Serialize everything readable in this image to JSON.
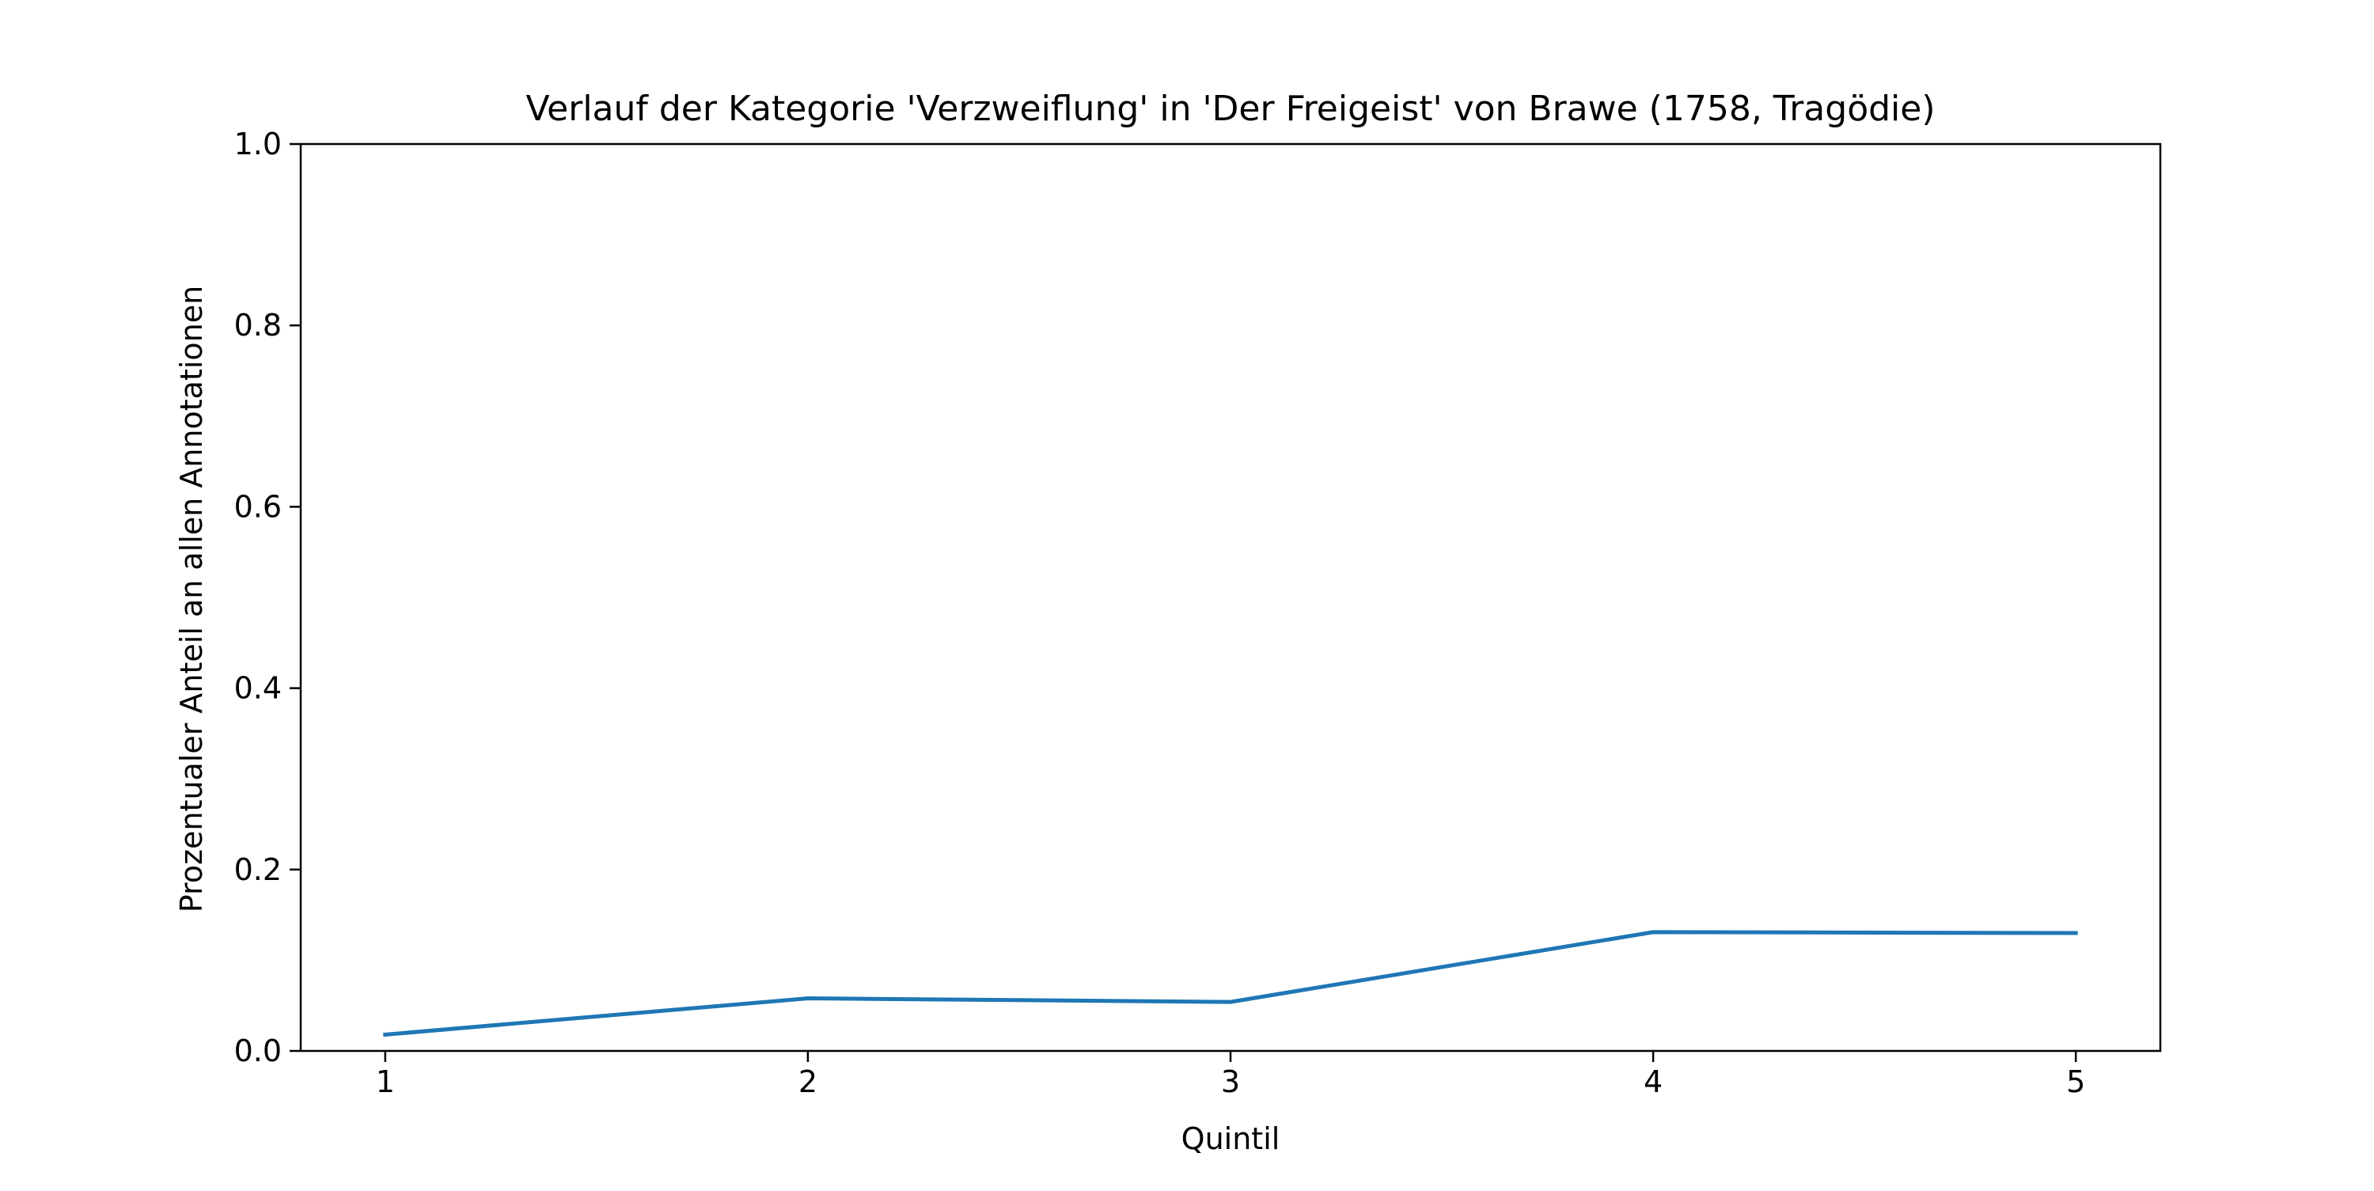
{
  "chart_data": {
    "type": "line",
    "title": "Verlauf der Kategorie 'Verzweiflung' in 'Der Freigeist' von Brawe (1758, Tragödie)",
    "xlabel": "Quintil",
    "ylabel": "Prozentualer Anteil an allen Annotationen",
    "x": [
      1,
      2,
      3,
      4,
      5
    ],
    "x_tick_labels": [
      "1",
      "2",
      "3",
      "4",
      "5"
    ],
    "xlim": [
      0.8,
      5.2
    ],
    "ylim": [
      0.0,
      1.0
    ],
    "y_ticks": [
      0.0,
      0.2,
      0.4,
      0.6,
      0.8,
      1.0
    ],
    "y_tick_labels": [
      "0.0",
      "0.2",
      "0.4",
      "0.6",
      "0.8",
      "1.0"
    ],
    "series": [
      {
        "values": [
          0.018,
          0.058,
          0.054,
          0.131,
          0.13
        ],
        "color": "#1f77b4"
      }
    ],
    "grid": false,
    "legend": "none"
  }
}
